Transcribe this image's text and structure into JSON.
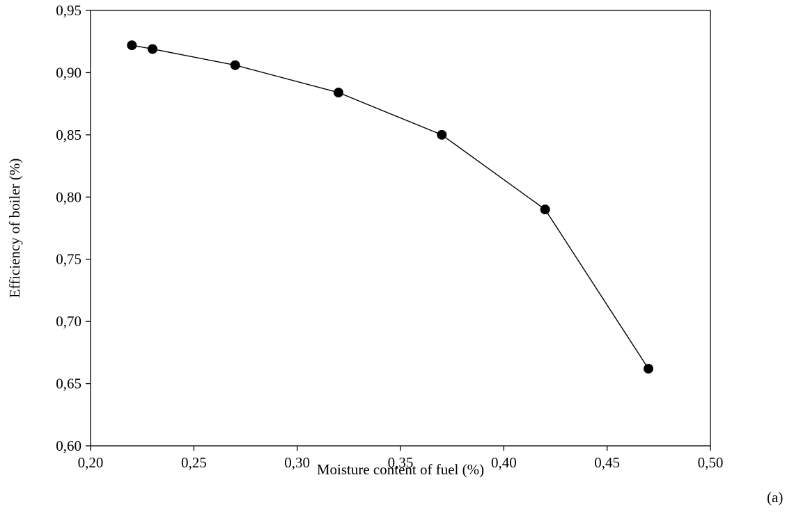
{
  "chart_data": {
    "type": "line",
    "title": "",
    "xlabel": "Moisture content of fuel (%)",
    "ylabel": "Efficiency of boiler (%)",
    "panel_label": "(a)",
    "xlim": [
      0.2,
      0.5
    ],
    "ylim": [
      0.6,
      0.95
    ],
    "x_ticks": [
      0.2,
      0.25,
      0.3,
      0.35,
      0.4,
      0.45,
      0.5
    ],
    "x_tick_labels": [
      "0,20",
      "0,25",
      "0,30",
      "0,35",
      "0,40",
      "0,45",
      "0,50"
    ],
    "y_ticks": [
      0.6,
      0.65,
      0.7,
      0.75,
      0.8,
      0.85,
      0.9,
      0.95
    ],
    "y_tick_labels": [
      "0,60",
      "0,65",
      "0,70",
      "0,75",
      "0,80",
      "0,85",
      "0,90",
      "0,95"
    ],
    "grid": false,
    "legend": "none",
    "series": [
      {
        "marker": "filled-circle",
        "color": "#000000",
        "points": [
          {
            "x": 0.22,
            "y": 0.922
          },
          {
            "x": 0.23,
            "y": 0.919
          },
          {
            "x": 0.27,
            "y": 0.906
          },
          {
            "x": 0.32,
            "y": 0.884
          },
          {
            "x": 0.37,
            "y": 0.85
          },
          {
            "x": 0.42,
            "y": 0.79
          },
          {
            "x": 0.47,
            "y": 0.662
          }
        ]
      }
    ]
  }
}
